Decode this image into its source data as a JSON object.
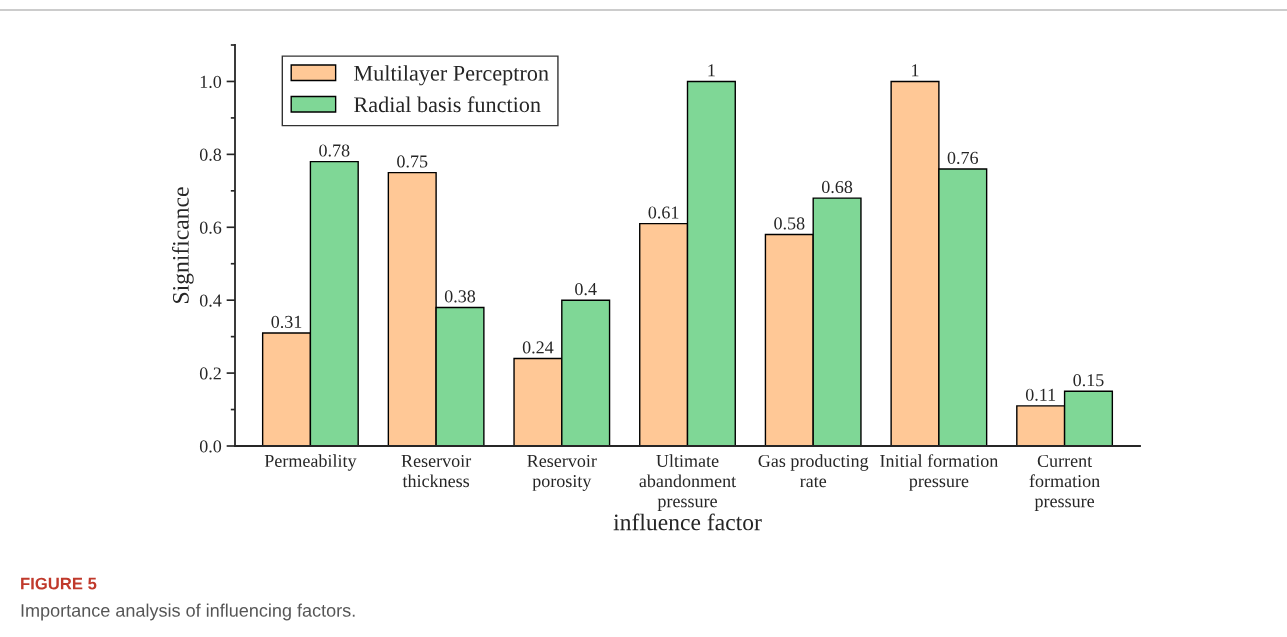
{
  "chart_data": {
    "type": "bar",
    "categories": [
      "Permeability",
      "Reservoir\nthickness",
      "Reservoir\nporosity",
      "Ultimate\nabandonment\npressure",
      "Gas producting\nrate",
      "Initial formation\npressure",
      "Current\nformation\npressure"
    ],
    "series": [
      {
        "name": "Multilayer Perceptron",
        "color": "#ffc896",
        "values": [
          0.31,
          0.75,
          0.24,
          0.61,
          0.58,
          1,
          0.11
        ]
      },
      {
        "name": "Radial basis function",
        "color": "#7fd796",
        "values": [
          0.78,
          0.38,
          0.4,
          1,
          0.68,
          0.76,
          0.15
        ]
      }
    ],
    "xlabel": "influence factor",
    "ylabel": "Significance",
    "ylim": [
      0,
      1.1
    ],
    "yticks": [
      {
        "value": 0,
        "label": "0.0"
      },
      {
        "value": 0.2,
        "label": "0.2"
      },
      {
        "value": 0.4,
        "label": "0.4"
      },
      {
        "value": 0.6,
        "label": "0.6"
      },
      {
        "value": 0.8,
        "label": "0.8"
      },
      {
        "value": 1,
        "label": "1.0"
      }
    ],
    "data_labels": true,
    "legend": "top left",
    "grid": false,
    "annotations": [
      "FIGURE 5",
      "Importance analysis of influencing factors."
    ]
  }
}
